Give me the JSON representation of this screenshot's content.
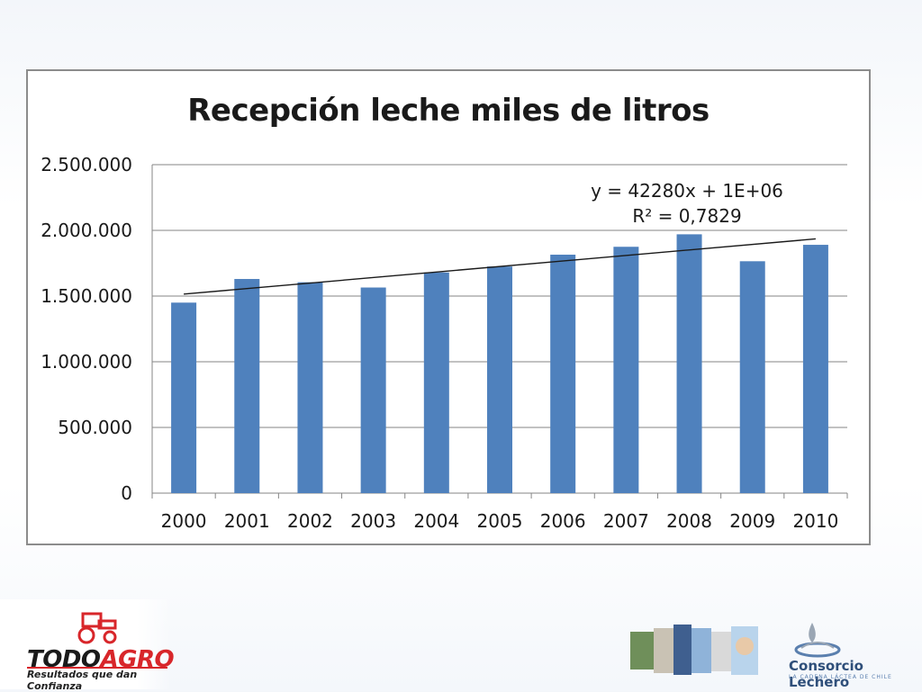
{
  "chart_data": {
    "type": "bar",
    "title": "Recepción leche miles de litros",
    "categories": [
      "2000",
      "2001",
      "2002",
      "2003",
      "2004",
      "2005",
      "2006",
      "2007",
      "2008",
      "2009",
      "2010"
    ],
    "values": [
      1450000,
      1630000,
      1605000,
      1565000,
      1680000,
      1725000,
      1815000,
      1875000,
      1970000,
      1765000,
      1890000
    ],
    "ylim": [
      0,
      2500000
    ],
    "yticks": [
      0,
      500000,
      1000000,
      1500000,
      2000000,
      2500000
    ],
    "ytick_labels": [
      "0",
      "500.000",
      "1.000.000",
      "1.500.000",
      "2.000.000",
      "2.500.000"
    ],
    "grid": true,
    "bar_color": "#4f81bd",
    "trendline": {
      "equation": "y = 42280x + 1E+06",
      "r2": "R² = 0,7829",
      "start": 1515000,
      "end": 1935000,
      "color": "#1a1a1a"
    }
  },
  "footer": {
    "todoagro": {
      "brand_part1": "TODO",
      "brand_part2": "AGRO",
      "tagline": "Resultados que dan Confianza"
    },
    "consorcio": {
      "name": "Consorcio Lechero",
      "tagline": "LA CADENA LÁCTEA DE CHILE"
    }
  }
}
